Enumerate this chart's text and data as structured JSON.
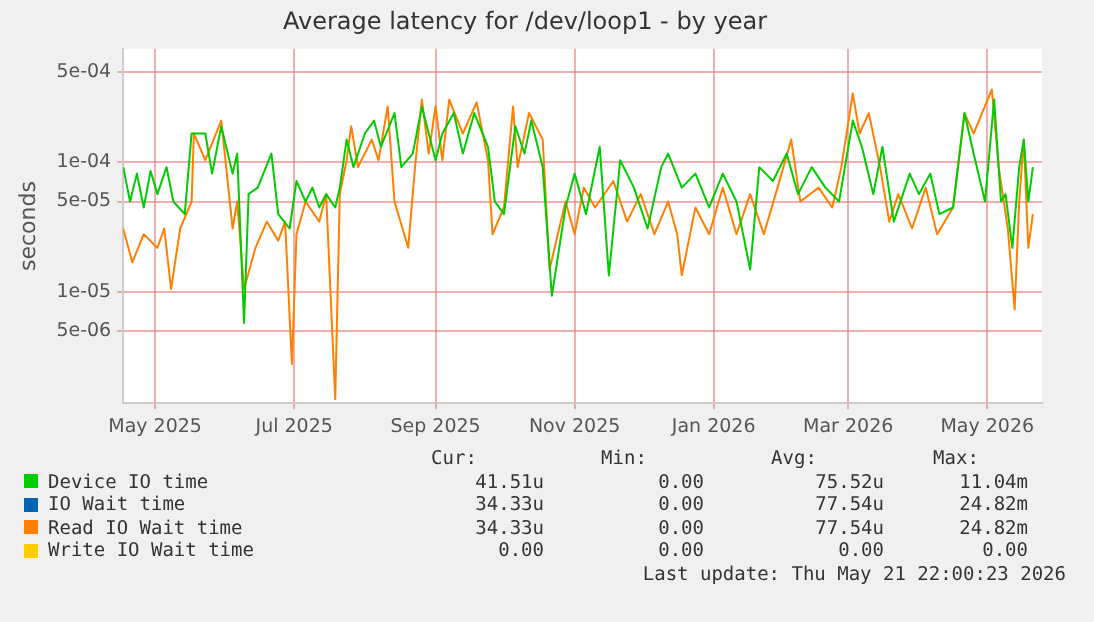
{
  "chart_data": {
    "type": "line",
    "title": "Average latency for /dev/loop1 - by year",
    "ylabel": "seconds",
    "log": "y",
    "grid": true,
    "legend": "bottom",
    "marker": "none",
    "line_style": "solid",
    "xlim": [
      "2025-04-17",
      "2026-05-25"
    ],
    "xticks": [
      {
        "value": "2025-05-01",
        "label": "May 2025"
      },
      {
        "value": "2025-07-01",
        "label": "Jul 2025"
      },
      {
        "value": "2025-09-01",
        "label": "Sep 2025"
      },
      {
        "value": "2025-11-01",
        "label": "Nov 2025"
      },
      {
        "value": "2026-01-01",
        "label": "Jan 2026"
      },
      {
        "value": "2026-03-01",
        "label": "Mar 2026"
      },
      {
        "value": "2026-05-01",
        "label": "May 2026"
      }
    ],
    "ylim": [
      1.4e-06,
      0.00075
    ],
    "yticks": [
      {
        "value": 5e-06,
        "label": "5e-06"
      },
      {
        "value": 1e-05,
        "label": "1e-05"
      },
      {
        "value": 5e-05,
        "label": "5e-05"
      },
      {
        "value": 0.0001,
        "label": "1e-04"
      },
      {
        "value": 0.0005,
        "label": "5e-04"
      }
    ],
    "series": [
      {
        "name": "Device IO time",
        "color": "#00cc00",
        "x": [
          "2025-04-17",
          "2025-04-20",
          "2025-04-23",
          "2025-04-26",
          "2025-04-29",
          "2025-05-02",
          "2025-05-06",
          "2025-05-09",
          "2025-05-14",
          "2025-05-17",
          "2025-05-23",
          "2025-05-26",
          "2025-05-30",
          "2025-06-04",
          "2025-06-06",
          "2025-06-09",
          "2025-06-11",
          "2025-06-15",
          "2025-06-21",
          "2025-06-24",
          "2025-06-29",
          "2025-07-02",
          "2025-07-06",
          "2025-07-09",
          "2025-07-12",
          "2025-07-15",
          "2025-07-19",
          "2025-07-21",
          "2025-07-24",
          "2025-07-27",
          "2025-08-01",
          "2025-08-05",
          "2025-08-08",
          "2025-08-14",
          "2025-08-17",
          "2025-08-22",
          "2025-08-26",
          "2025-09-01",
          "2025-09-04",
          "2025-09-09",
          "2025-09-13",
          "2025-09-18",
          "2025-09-24",
          "2025-09-27",
          "2025-10-01",
          "2025-10-06",
          "2025-10-10",
          "2025-10-13",
          "2025-10-18",
          "2025-10-22",
          "2025-10-28",
          "2025-11-01",
          "2025-11-06",
          "2025-11-12",
          "2025-11-16",
          "2025-11-21",
          "2025-11-27",
          "2025-12-03",
          "2025-12-09",
          "2025-12-12",
          "2025-12-18",
          "2025-12-24",
          "2025-12-30",
          "2026-01-05",
          "2026-01-11",
          "2026-01-17",
          "2026-01-21",
          "2026-01-27",
          "2026-02-02",
          "2026-02-07",
          "2026-02-13",
          "2026-02-19",
          "2026-02-25",
          "2026-03-03",
          "2026-03-07",
          "2026-03-12",
          "2026-03-16",
          "2026-03-21",
          "2026-03-28",
          "2026-04-01",
          "2026-04-06",
          "2026-04-10",
          "2026-04-16",
          "2026-04-21",
          "2026-04-25",
          "2026-04-30",
          "2026-05-04",
          "2026-05-07",
          "2026-05-09",
          "2026-05-12",
          "2026-05-15",
          "2026-05-17",
          "2026-05-19",
          "2026-05-21"
        ],
        "values": [
          9.2e-05,
          5e-05,
          8.2e-05,
          4.5e-05,
          8.6e-05,
          5.7e-05,
          9.2e-05,
          5e-05,
          4e-05,
          0.000167,
          0.000167,
          8.2e-05,
          0.00019,
          8.2e-05,
          0.000117,
          5.8e-06,
          5.7e-05,
          6.4e-05,
          0.000117,
          4e-05,
          3.1e-05,
          7.2e-05,
          5e-05,
          6.4e-05,
          4.5e-05,
          5.7e-05,
          4.5e-05,
          6.4e-05,
          0.00015,
          9.2e-05,
          0.000167,
          0.00021,
          0.000132,
          0.00024,
          9.2e-05,
          0.000117,
          0.00027,
          0.000104,
          0.000167,
          0.00024,
          0.000117,
          0.00024,
          0.000132,
          5e-05,
          4e-05,
          0.00019,
          0.000117,
          0.00021,
          9.2e-05,
          9.4e-06,
          4.5e-05,
          8.2e-05,
          4e-05,
          0.000132,
          1.35e-05,
          0.000104,
          6.4e-05,
          3.1e-05,
          9.2e-05,
          0.000117,
          6.4e-05,
          8.2e-05,
          4.5e-05,
          8.2e-05,
          5e-05,
          1.5e-05,
          9.2e-05,
          7.2e-05,
          0.000117,
          5.7e-05,
          9.2e-05,
          6.4e-05,
          5e-05,
          0.00021,
          0.000132,
          5.7e-05,
          0.000132,
          3.5e-05,
          8.2e-05,
          5.7e-05,
          8.2e-05,
          4e-05,
          4.5e-05,
          0.00024,
          0.000117,
          5e-05,
          0.000305,
          5e-05,
          5.7e-05,
          2.2e-05,
          9.2e-05,
          0.00015,
          5e-05,
          9.2e-05
        ]
      },
      {
        "name": "IO Wait time",
        "color": "#0066b3",
        "values": [
          null
        ]
      },
      {
        "name": "Read IO Wait time",
        "color": "#ff8000",
        "x": [
          "2025-04-17",
          "2025-04-21",
          "2025-04-26",
          "2025-05-02",
          "2025-05-05",
          "2025-05-08",
          "2025-05-12",
          "2025-05-17",
          "2025-05-18",
          "2025-05-23",
          "2025-05-30",
          "2025-06-04",
          "2025-06-06",
          "2025-06-09",
          "2025-06-14",
          "2025-06-19",
          "2025-06-24",
          "2025-06-27",
          "2025-06-30",
          "2025-07-02",
          "2025-07-06",
          "2025-07-12",
          "2025-07-15",
          "2025-07-19",
          "2025-07-21",
          "2025-07-24",
          "2025-07-26",
          "2025-07-29",
          "2025-08-04",
          "2025-08-07",
          "2025-08-11",
          "2025-08-14",
          "2025-08-20",
          "2025-08-23",
          "2025-08-26",
          "2025-08-29",
          "2025-09-01",
          "2025-09-04",
          "2025-09-07",
          "2025-09-13",
          "2025-09-19",
          "2025-09-24",
          "2025-09-26",
          "2025-10-01",
          "2025-10-05",
          "2025-10-07",
          "2025-10-12",
          "2025-10-18",
          "2025-10-21",
          "2025-10-28",
          "2025-11-01",
          "2025-11-05",
          "2025-11-10",
          "2025-11-18",
          "2025-11-24",
          "2025-11-30",
          "2025-12-06",
          "2025-12-12",
          "2025-12-16",
          "2025-12-18",
          "2025-12-24",
          "2025-12-30",
          "2026-01-05",
          "2026-01-11",
          "2026-01-17",
          "2026-01-23",
          "2026-01-29",
          "2026-02-04",
          "2026-02-08",
          "2026-02-16",
          "2026-02-22",
          "2026-02-26",
          "2026-03-03",
          "2026-03-06",
          "2026-03-10",
          "2026-03-15",
          "2026-03-19",
          "2026-03-23",
          "2026-03-29",
          "2026-04-04",
          "2026-04-09",
          "2026-04-16",
          "2026-04-21",
          "2026-04-25",
          "2026-05-03",
          "2026-05-06",
          "2026-05-10",
          "2026-05-13",
          "2026-05-15",
          "2026-05-17",
          "2026-05-19",
          "2026-05-21"
        ],
        "values": [
          3.1e-05,
          1.7e-05,
          2.8e-05,
          2.2e-05,
          3.1e-05,
          1.06e-05,
          3.1e-05,
          5e-05,
          0.000167,
          0.000104,
          0.00021,
          3.1e-05,
          5e-05,
          1.06e-05,
          2.2e-05,
          3.5e-05,
          2.5e-05,
          3.5e-05,
          2.8e-06,
          2.8e-05,
          5e-05,
          3.5e-05,
          5.7e-05,
          1.5e-06,
          5.7e-05,
          0.000104,
          0.00019,
          9.2e-05,
          0.00015,
          0.000104,
          0.00027,
          5e-05,
          2.2e-05,
          9.2e-05,
          0.000305,
          0.000117,
          0.00027,
          0.000104,
          0.000305,
          0.000167,
          0.00029,
          0.000104,
          2.8e-05,
          4.5e-05,
          0.00027,
          9.2e-05,
          0.00024,
          0.00015,
          1.5e-05,
          5e-05,
          2.8e-05,
          6.4e-05,
          4.5e-05,
          7.2e-05,
          3.5e-05,
          5.7e-05,
          2.8e-05,
          5e-05,
          2.8e-05,
          1.35e-05,
          4.5e-05,
          2.8e-05,
          6.4e-05,
          2.8e-05,
          5.7e-05,
          2.8e-05,
          6.4e-05,
          0.00015,
          5e-05,
          6.4e-05,
          4.5e-05,
          9.2e-05,
          0.00034,
          0.000167,
          0.00024,
          9.2e-05,
          3.5e-05,
          5.7e-05,
          3.1e-05,
          6.4e-05,
          2.8e-05,
          4.5e-05,
          0.00024,
          0.000167,
          0.000365,
          9.2e-05,
          3.1e-05,
          7.4e-06,
          5e-05,
          0.00015,
          2.2e-05,
          4e-05
        ]
      },
      {
        "name": "Write IO Wait time",
        "color": "#ffcc00",
        "values": [
          null
        ]
      }
    ],
    "annotations": [
      "Cur:",
      "Min:",
      "Avg:",
      "Max:",
      "41.51u",
      "0.00",
      "75.52u",
      "11.04m",
      "34.33u",
      "0.00",
      "77.54u",
      "24.82m",
      "34.33u",
      "0.00",
      "77.54u",
      "24.82m",
      "0.00",
      "0.00",
      "0.00",
      "0.00",
      "Last update: Thu May 21 22:00:23 2026"
    ]
  }
}
